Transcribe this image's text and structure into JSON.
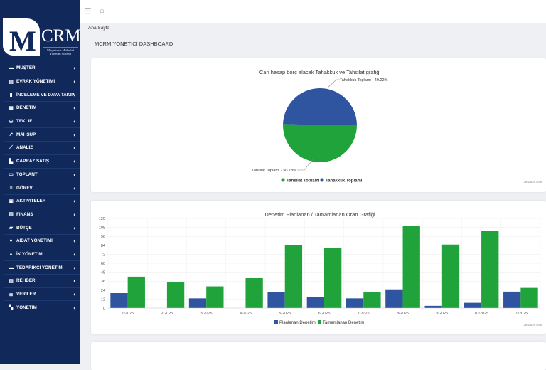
{
  "logo": {
    "text": "CRM",
    "letter": "M",
    "subtitle": "Müşavir ve Mükellef Yönetim Sistemi"
  },
  "sidebar": {
    "items": [
      {
        "label": "MÜŞTERI",
        "icon": "folder-icon"
      },
      {
        "label": "EVRAK YÖNETIMI",
        "icon": "document-icon"
      },
      {
        "label": "İNCELEME VE DAVA TAKIP",
        "icon": "clipboard-icon"
      },
      {
        "label": "DENETIM",
        "icon": "checklist-icon"
      },
      {
        "label": "TEKLIF",
        "icon": "handshake-icon"
      },
      {
        "label": "MAHSUP",
        "icon": "external-link-icon"
      },
      {
        "label": "ANALIZ",
        "icon": "line-chart-icon"
      },
      {
        "label": "ÇAPRAZ SATIŞ",
        "icon": "building-icon"
      },
      {
        "label": "TOPLANTI",
        "icon": "presentation-icon"
      },
      {
        "label": "GÖREV",
        "icon": "list-icon"
      },
      {
        "label": "AKTIVITELER",
        "icon": "calendar-icon"
      },
      {
        "label": "FINANS",
        "icon": "calculator-icon"
      },
      {
        "label": "BÜTÇE",
        "icon": "money-icon"
      },
      {
        "label": "AIDAT YÖNETIMI",
        "icon": "coin-icon"
      },
      {
        "label": "İK YÖNETIMI",
        "icon": "user-icon"
      },
      {
        "label": "TEDARIKÇI YÖNETIMI",
        "icon": "briefcase-icon"
      },
      {
        "label": "REHBER",
        "icon": "address-book-icon"
      },
      {
        "label": "VERILER",
        "icon": "database-icon"
      },
      {
        "label": "YÖNETIM",
        "icon": "users-cog-icon"
      }
    ]
  },
  "topbar": {
    "menu_icon": "hamburger-icon",
    "home_icon": "home-icon"
  },
  "breadcrumb": "Ana Sayfa",
  "page_title": "MCRM YÖNETİCİ DASHBOARD",
  "colors": {
    "sidebar": "#10295a",
    "blue": "#2f55a0",
    "green": "#1fa33a"
  },
  "chart_data": [
    {
      "type": "pie",
      "title": "Cari hesap borç alacak Tahakkuk ve Tahsilat grafiği",
      "slices": [
        {
          "name": "Tahsilat Toplamı",
          "value": 50.78,
          "label": "Tahsilat Toplamı - 50.78%",
          "color": "#1fa33a"
        },
        {
          "name": "Tahakkuk Toplamı",
          "value": 49.22,
          "label": "Tahakkuk Toplamı - 49.22%",
          "color": "#2f55a0"
        }
      ],
      "legend": "bottom",
      "credit": "CanvasJS.com"
    },
    {
      "type": "bar",
      "title": "Denetim Planlanan / Tamamlanan Oran Grafiği",
      "categories": [
        "1/2025",
        "2/2025",
        "3/2025",
        "4/2025",
        "5/2025",
        "6/2025",
        "7/2025",
        "8/2025",
        "9/2025",
        "10/2025",
        "11/2025"
      ],
      "series": [
        {
          "name": "Planlanan Denetim",
          "color": "#2f55a0",
          "values": [
            20,
            0,
            13,
            0,
            21,
            15,
            13,
            25,
            3,
            7,
            22
          ]
        },
        {
          "name": "Tamamlanan Denetim",
          "color": "#1fa33a",
          "values": [
            42,
            35,
            29,
            40,
            84,
            80,
            21,
            110,
            85,
            103,
            27
          ]
        }
      ],
      "yticks": [
        0,
        12,
        24,
        36,
        48,
        60,
        72,
        84,
        96,
        108,
        120
      ],
      "ylim": [
        0,
        120
      ],
      "grid": true,
      "legend": "bottom",
      "credit": "CanvasJS.com"
    }
  ]
}
